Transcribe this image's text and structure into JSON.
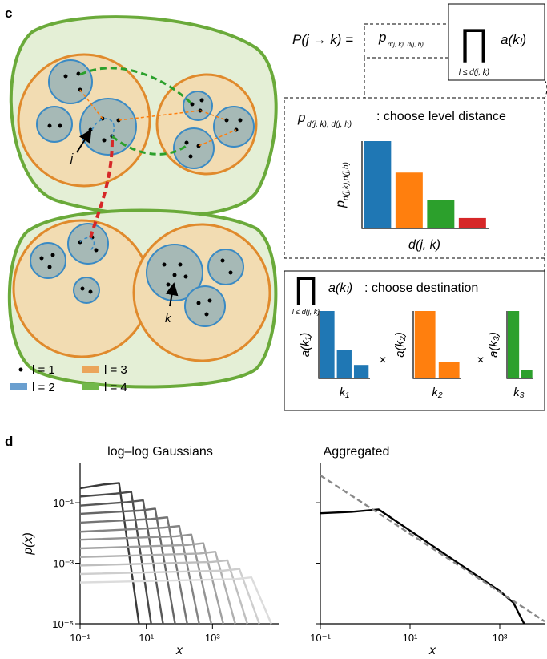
{
  "panel_c": {
    "label": "c",
    "formula": {
      "lhs": "P(j → k) =",
      "p": "p",
      "p_sub": "d(j, k), d(j, h)",
      "prod": "∏",
      "prod_sub": "l ≤ d(j, k)",
      "a": "a(kₗ)"
    },
    "level_box": {
      "p": "p",
      "p_sub": "d(j, k), d(j, h)",
      "caption": ": choose level distance"
    },
    "dest_box": {
      "prod": "∏",
      "prod_sub": "l ≤ d(j, k)",
      "a": "a(kₗ)",
      "caption": ": choose destination",
      "times": [
        "×",
        "×"
      ]
    },
    "nodes": {
      "j": "j",
      "k": "k"
    },
    "legend": [
      {
        "label": "l = 1",
        "color": "#000000"
      },
      {
        "label": "l = 2",
        "color": "#6a9fcf"
      },
      {
        "label": "l = 3",
        "color": "#eba55a"
      },
      {
        "label": "l = 4",
        "color": "#72b84a"
      }
    ]
  },
  "panel_d": {
    "label": "d"
  },
  "chart_data": [
    {
      "type": "bar",
      "ylabel": "p",
      "ylabel_sub": "d(j,k),d(j,h)",
      "xlabel": "d(j, k)",
      "values": [
        1,
        0.64,
        0.33,
        0.12
      ],
      "colors": [
        "#1f77b4",
        "#ff7f0e",
        "#2ca02c",
        "#d62728"
      ],
      "ylim": [
        0,
        1
      ]
    },
    {
      "type": "bar",
      "ylabel": "a(k₁)",
      "xlabel": "k₁",
      "values": [
        1,
        0.42,
        0.2
      ],
      "colors": [
        "#1f77b4",
        "#1f77b4",
        "#1f77b4"
      ],
      "ylim": [
        0,
        1
      ]
    },
    {
      "type": "bar",
      "ylabel": "a(k₂)",
      "xlabel": "k₂",
      "values": [
        1,
        0.25
      ],
      "colors": [
        "#ff7f0e",
        "#ff7f0e"
      ],
      "ylim": [
        0,
        1
      ]
    },
    {
      "type": "bar",
      "ylabel": "a(k₃)",
      "xlabel": "k₃",
      "values": [
        1,
        0.12
      ],
      "colors": [
        "#2ca02c",
        "#2ca02c"
      ],
      "ylim": [
        0,
        1
      ]
    },
    {
      "type": "line",
      "title": "log–log Gaussians",
      "xlabel": "x",
      "ylabel": "p(x)",
      "log_x": true,
      "log_y": true,
      "xlim": [
        0.1,
        100000
      ],
      "ylim": [
        1e-05,
        2
      ],
      "xticks": [
        {
          "value": 0.1,
          "label": "10⁻¹"
        },
        {
          "value": 10,
          "label": "10¹"
        },
        {
          "value": 1000,
          "label": "10³"
        }
      ],
      "yticks": [
        {
          "value": 1e-05,
          "label": "10⁻⁵"
        },
        {
          "value": 0.001,
          "label": "10⁻³"
        },
        {
          "value": 0.1,
          "label": "10⁻¹"
        }
      ],
      "show_ytick_labels": true,
      "series": [
        {
          "color": "#3a3a3a",
          "x": [
            0.1,
            0.5,
            1.5,
            6
          ],
          "values": [
            0.3,
            0.4,
            0.45,
            1e-05
          ]
        },
        {
          "color": "#494949",
          "x": [
            0.1,
            1.2,
            3.5,
            14
          ],
          "values": [
            0.16,
            0.2,
            0.23,
            1e-05
          ]
        },
        {
          "color": "#585858",
          "x": [
            0.1,
            2.7,
            8,
            32
          ],
          "values": [
            0.08,
            0.105,
            0.12,
            1e-05
          ]
        },
        {
          "color": "#666666",
          "x": [
            0.1,
            6.2,
            18.5,
            74
          ],
          "values": [
            0.043,
            0.055,
            0.064,
            1e-05
          ]
        },
        {
          "color": "#757575",
          "x": [
            0.1,
            14,
            43,
            172
          ],
          "values": [
            0.022,
            0.029,
            0.033,
            1e-05
          ]
        },
        {
          "color": "#848484",
          "x": [
            0.1,
            33,
            99,
            396
          ],
          "values": [
            0.011,
            0.015,
            0.017,
            1e-05
          ]
        },
        {
          "color": "#939393",
          "x": [
            0.1,
            77,
            230,
            920
          ],
          "values": [
            0.006,
            0.0078,
            0.0089,
            1e-05
          ]
        },
        {
          "color": "#a1a1a1",
          "x": [
            0.1,
            177,
            530,
            2120
          ],
          "values": [
            0.0031,
            0.004,
            0.0046,
            1e-05
          ]
        },
        {
          "color": "#b0b0b0",
          "x": [
            0.1,
            407,
            1220,
            4880
          ],
          "values": [
            0.0016,
            0.0021,
            0.0024,
            1e-05
          ]
        },
        {
          "color": "#bfbfbf",
          "x": [
            0.1,
            943,
            2830,
            11300
          ],
          "values": [
            0.00084,
            0.0011,
            0.00125,
            1e-05
          ]
        },
        {
          "color": "#cecece",
          "x": [
            0.1,
            2170,
            6500,
            26000
          ],
          "values": [
            0.00044,
            0.00057,
            0.00065,
            1e-05
          ]
        },
        {
          "color": "#dcdcdc",
          "x": [
            0.1,
            5000,
            15000,
            60000
          ],
          "values": [
            0.00023,
            0.0003,
            0.00034,
            1e-05
          ]
        }
      ]
    },
    {
      "type": "line",
      "title": "Aggregated",
      "xlabel": "x",
      "log_x": true,
      "log_y": true,
      "xlim": [
        0.1,
        10000
      ],
      "ylim": [
        1e-05,
        2
      ],
      "xticks": [
        {
          "value": 0.1,
          "label": "10⁻¹"
        },
        {
          "value": 10,
          "label": "10¹"
        },
        {
          "value": 1000,
          "label": "10³"
        }
      ],
      "yticks": [
        1e-05,
        0.001,
        0.1
      ],
      "show_ytick_labels": false,
      "series": [
        {
          "color": "#000000",
          "x": [
            0.1,
            0.5,
            2,
            10,
            100,
            1000,
            2000,
            3500
          ],
          "values": [
            0.045,
            0.05,
            0.06,
            0.012,
            0.0012,
            0.00012,
            5e-05,
            1e-05
          ]
        },
        {
          "color": "#888888",
          "linestyle": "dashed",
          "x": [
            0.1,
            10000
          ],
          "values": [
            0.8,
            1.2e-05
          ]
        }
      ]
    }
  ]
}
